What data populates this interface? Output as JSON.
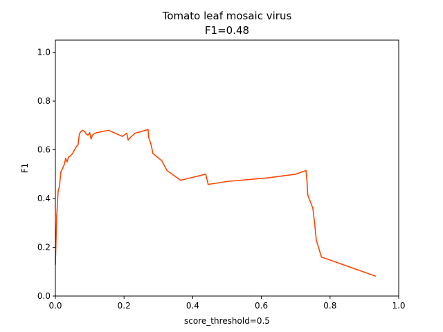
{
  "chart_data": {
    "type": "line",
    "title": "Tomato leaf mosaic virus",
    "subtitle": "F1=0.48",
    "xlabel": "score_threshold=0.5",
    "ylabel": "F1",
    "xlim": [
      0.0,
      1.0
    ],
    "ylim": [
      0.0,
      1.05
    ],
    "xticks": [
      "0.0",
      "0.2",
      "0.4",
      "0.6",
      "0.8",
      "1.0"
    ],
    "yticks": [
      "0.0",
      "0.2",
      "0.4",
      "0.6",
      "0.8",
      "1.0"
    ],
    "grid": false,
    "series": [
      {
        "color": "#ff4500",
        "x": [
          0.0,
          0.004,
          0.008,
          0.012,
          0.016,
          0.02,
          0.026,
          0.03,
          0.034,
          0.038,
          0.044,
          0.05,
          0.056,
          0.062,
          0.066,
          0.07,
          0.074,
          0.08,
          0.085,
          0.09,
          0.095,
          0.1,
          0.104,
          0.108,
          0.112,
          0.12,
          0.155,
          0.195,
          0.208,
          0.212,
          0.218,
          0.232,
          0.27,
          0.272,
          0.278,
          0.282,
          0.284,
          0.31,
          0.325,
          0.365,
          0.438,
          0.445,
          0.5,
          0.62,
          0.7,
          0.73,
          0.733,
          0.735,
          0.75,
          0.755,
          0.76,
          0.775,
          0.932
        ],
        "y": [
          0.13,
          0.33,
          0.43,
          0.45,
          0.51,
          0.52,
          0.54,
          0.565,
          0.55,
          0.57,
          0.575,
          0.585,
          0.6,
          0.615,
          0.62,
          0.665,
          0.675,
          0.68,
          0.675,
          0.665,
          0.66,
          0.67,
          0.645,
          0.66,
          0.665,
          0.67,
          0.68,
          0.655,
          0.668,
          0.64,
          0.65,
          0.668,
          0.683,
          0.65,
          0.625,
          0.6,
          0.585,
          0.555,
          0.515,
          0.475,
          0.5,
          0.458,
          0.47,
          0.485,
          0.5,
          0.515,
          0.47,
          0.415,
          0.36,
          0.3,
          0.23,
          0.16,
          0.082
        ]
      }
    ]
  }
}
